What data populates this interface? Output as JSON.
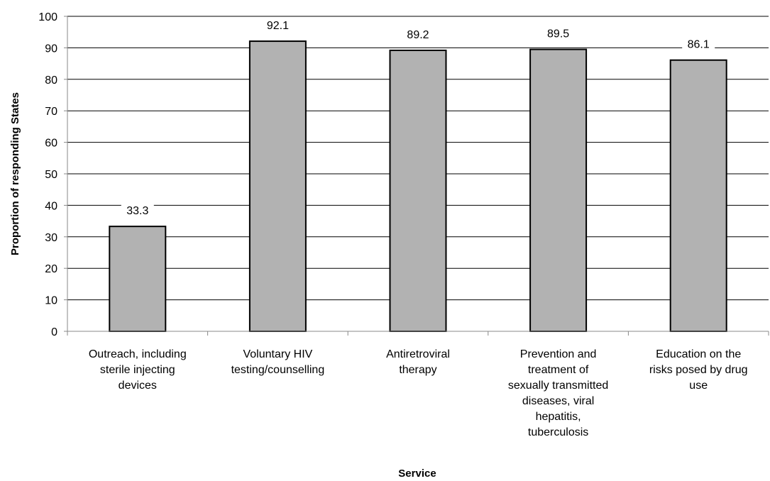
{
  "chart_data": {
    "type": "bar",
    "title": "",
    "xlabel": "Service",
    "ylabel": "Proportion of responding States",
    "ylim": [
      0,
      100
    ],
    "yticks": [
      0,
      10,
      20,
      30,
      40,
      50,
      60,
      70,
      80,
      90,
      100
    ],
    "grid": "horizontal major gridlines",
    "legend": "none",
    "bar_color": "#b2b2b2",
    "bar_edge_color": "#000000",
    "categories": [
      [
        "Outreach, including",
        "sterile injecting",
        "devices"
      ],
      [
        "Voluntary HIV",
        "testing/counselling"
      ],
      [
        "Antiretroviral",
        "therapy"
      ],
      [
        "Prevention and",
        "treatment of",
        "sexually transmitted",
        "diseases, viral",
        "hepatitis,",
        "tuberculosis"
      ],
      [
        "Education on the",
        "risks posed by drug",
        "use"
      ]
    ],
    "values": [
      33.3,
      92.1,
      89.2,
      89.5,
      86.1
    ],
    "data_labels": [
      "33.3",
      "92.1",
      "89.2",
      "89.5",
      "86.1"
    ]
  }
}
